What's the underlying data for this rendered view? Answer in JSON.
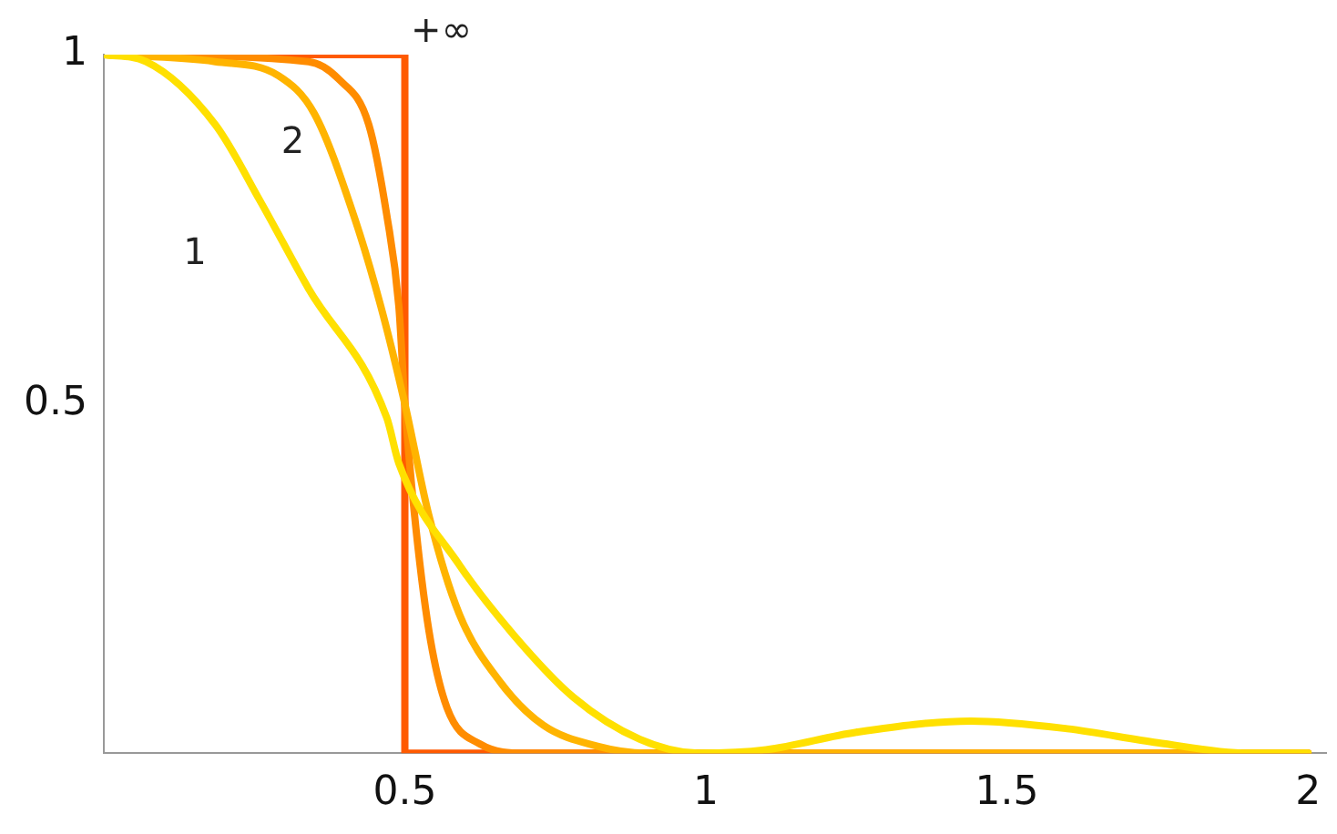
{
  "chart_data": {
    "type": "line",
    "xlim": [
      0,
      2.03
    ],
    "ylim": [
      0,
      1
    ],
    "xticks": [
      0.5,
      1,
      1.5,
      2
    ],
    "yticks": [
      0.5,
      1
    ],
    "grid": false,
    "legend": false,
    "marker": "none",
    "series": [
      {
        "name": "1",
        "color": "#ffe000",
        "x": [
          0,
          0.07,
          0.185,
          0.26,
          0.34,
          0.47,
          0.49,
          0.59,
          0.68,
          0.78,
          0.89,
          0.99,
          1.1,
          1.25,
          1.44,
          1.6,
          1.75,
          1.9,
          2
        ],
        "values": [
          1,
          0.99,
          0.9,
          0.79,
          0.665,
          0.48,
          0.415,
          0.27,
          0.17,
          0.08,
          0.02,
          0,
          0.005,
          0.03,
          0.046,
          0.035,
          0.015,
          0,
          0
        ]
      },
      {
        "name": "2",
        "color": "#ffb400",
        "x": [
          0,
          0.185,
          0.29,
          0.35,
          0.415,
          0.46,
          0.5,
          0.54,
          0.59,
          0.66,
          0.73,
          0.82,
          0.9,
          2
        ],
        "values": [
          1,
          0.99,
          0.97,
          0.915,
          0.77,
          0.64,
          0.5,
          0.34,
          0.2,
          0.1,
          0.04,
          0.01,
          0,
          0
        ]
      },
      {
        "color": "#ff8c00",
        "x": [
          0,
          0.34,
          0.39,
          0.44,
          0.47,
          0.49,
          0.5,
          0.515,
          0.54,
          0.57,
          0.625,
          0.7,
          2
        ],
        "values": [
          1,
          0.99,
          0.965,
          0.9,
          0.77,
          0.64,
          0.5,
          0.35,
          0.175,
          0.065,
          0.013,
          0,
          0
        ]
      },
      {
        "name": "+∞",
        "color": "#ff5a00",
        "x": [
          0,
          0.5,
          0.5,
          2
        ],
        "values": [
          1,
          1,
          0,
          0
        ]
      }
    ]
  }
}
